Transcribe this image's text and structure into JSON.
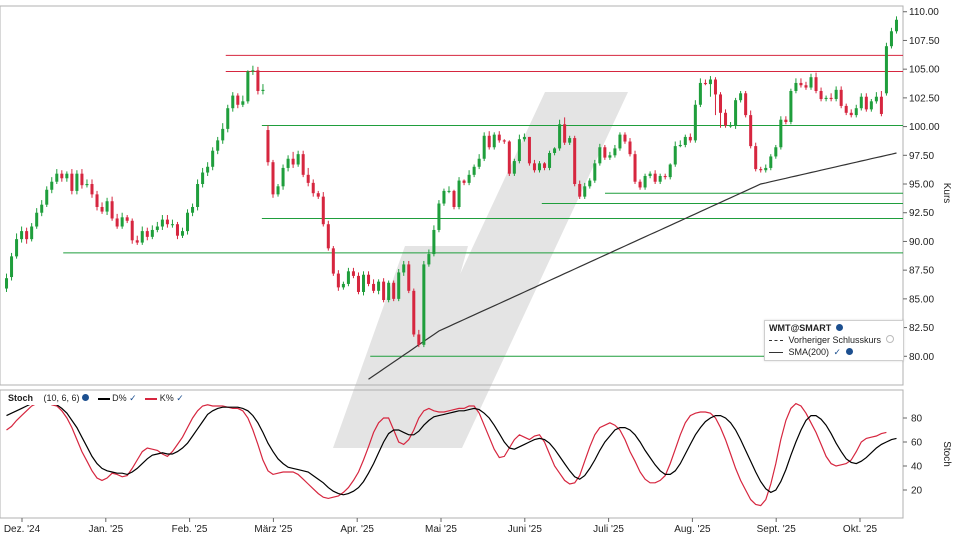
{
  "chart_data": [
    {
      "type": "candlestick",
      "symbol": "WMT@SMART",
      "ylabel": "Kurs",
      "ylim": [
        77.5,
        110.5
      ],
      "y_ticks": [
        "80.00",
        "82.50",
        "85.00",
        "87.50",
        "90.00",
        "92.50",
        "95.00",
        "97.50",
        "100.00",
        "102.50",
        "105.00",
        "107.50",
        "110.00"
      ],
      "x_ticks": [
        "Dez. '24",
        "Jan. '25",
        "Feb. '25",
        "März '25",
        "Apr. '25",
        "Mai '25",
        "Juni '25",
        "Juli '25",
        "Aug. '25",
        "Sept. '25",
        "Okt. '25"
      ],
      "legend": [
        "Vorheriger Schlusskurs",
        "SMA(200)"
      ],
      "colors": {
        "up": "#1f9e3c",
        "down": "#d6263f",
        "resistance": "#d6263f",
        "support": "#1f9e3c",
        "sma": "#333333"
      },
      "close": [
        86.8,
        88.7,
        90.2,
        90.9,
        90.2,
        91.3,
        92.5,
        93.2,
        94.5,
        95.2,
        95.9,
        95.5,
        95.9,
        94.4,
        95.9,
        94.9,
        95.0,
        94.1,
        93.0,
        92.6,
        93.5,
        92.0,
        91.3,
        92.1,
        91.8,
        90.1,
        89.9,
        90.9,
        90.4,
        91.0,
        91.3,
        91.9,
        91.5,
        91.5,
        90.5,
        90.9,
        92.5,
        93.0,
        95.0,
        96.0,
        96.5,
        97.9,
        98.8,
        99.8,
        101.6,
        102.7,
        101.9,
        102.2,
        104.8,
        104.9,
        103.1,
        103.2,
        96.9,
        94.1,
        94.8,
        96.4,
        97.2,
        96.7,
        97.6,
        95.8,
        95.1,
        94.2,
        93.9,
        91.5,
        89.4,
        87.2,
        86.0,
        86.3,
        87.4,
        87.0,
        85.6,
        87.1,
        86.3,
        85.7,
        86.5,
        84.9,
        86.4,
        85.0,
        87.3,
        88.0,
        85.7,
        81.9,
        81.0,
        88.0,
        88.9,
        91.0,
        93.3,
        94.4,
        94.4,
        93.0,
        95.3,
        95.1,
        95.8,
        96.5,
        97.2,
        99.2,
        98.2,
        99.3,
        98.8,
        98.7,
        95.9,
        97.0,
        98.9,
        99.1,
        96.8,
        96.2,
        96.8,
        96.4,
        97.7,
        98.1,
        100.2,
        98.6,
        99.0,
        95.0,
        93.9,
        94.8,
        95.3,
        96.8,
        98.2,
        97.3,
        97.5,
        98.1,
        99.3,
        98.7,
        97.6,
        95.2,
        94.7,
        95.7,
        95.9,
        95.2,
        95.7,
        95.6,
        96.7,
        98.3,
        98.4,
        99.1,
        98.8,
        101.9,
        103.8,
        103.7,
        104.1,
        102.8,
        101.2,
        100.1,
        100.1,
        102.3,
        102.9,
        101.0,
        98.3,
        96.3,
        96.2,
        96.4,
        97.4,
        98.2,
        100.6,
        100.4,
        103.1,
        103.8,
        103.6,
        103.4,
        104.3,
        103.1,
        102.4,
        102.5,
        102.4,
        103.2,
        101.8,
        101.2,
        101.0,
        101.6,
        102.6,
        101.5,
        102.2,
        102.6,
        101.1,
        107.0,
        108.3,
        109.3
      ],
      "open": [
        85.9,
        86.9,
        88.7,
        90.2,
        90.9,
        90.2,
        91.3,
        92.5,
        93.2,
        94.5,
        95.2,
        95.9,
        95.5,
        95.9,
        94.4,
        95.9,
        94.9,
        95.0,
        94.1,
        93.0,
        92.6,
        93.5,
        92.0,
        91.3,
        92.1,
        91.8,
        90.1,
        89.9,
        90.9,
        90.4,
        91.0,
        91.3,
        91.9,
        91.5,
        91.5,
        90.5,
        90.9,
        92.5,
        93.0,
        95.0,
        96.0,
        96.5,
        97.9,
        98.8,
        99.8,
        101.6,
        102.7,
        101.9,
        102.2,
        104.8,
        104.9,
        103.1,
        99.7,
        96.9,
        94.1,
        94.8,
        96.4,
        97.2,
        96.7,
        97.6,
        95.8,
        95.1,
        94.2,
        93.9,
        91.5,
        89.4,
        87.2,
        86.0,
        86.3,
        87.4,
        87.0,
        85.6,
        87.1,
        86.3,
        85.7,
        86.5,
        84.9,
        86.4,
        85.0,
        87.3,
        88.0,
        85.7,
        81.9,
        81.0,
        88.0,
        88.9,
        91.0,
        93.3,
        94.4,
        94.4,
        93.0,
        95.3,
        95.1,
        95.8,
        96.5,
        97.2,
        99.2,
        98.2,
        99.3,
        98.8,
        98.7,
        95.9,
        97.0,
        98.9,
        99.1,
        96.8,
        96.2,
        96.8,
        96.4,
        97.7,
        98.1,
        100.2,
        98.6,
        99.0,
        95.0,
        93.9,
        94.8,
        95.3,
        96.8,
        98.2,
        97.3,
        97.5,
        98.1,
        99.3,
        98.7,
        97.6,
        95.2,
        94.7,
        95.7,
        95.9,
        95.2,
        95.7,
        95.6,
        96.7,
        98.3,
        98.4,
        99.1,
        98.8,
        101.9,
        103.8,
        103.7,
        104.1,
        102.8,
        101.2,
        100.1,
        100.1,
        102.3,
        102.9,
        101.0,
        98.3,
        96.3,
        96.2,
        96.4,
        97.4,
        98.2,
        100.6,
        100.4,
        103.1,
        103.8,
        103.6,
        103.4,
        104.3,
        103.1,
        102.4,
        102.5,
        102.4,
        103.2,
        101.8,
        101.2,
        101.0,
        101.6,
        102.6,
        101.5,
        102.2,
        102.6,
        102.9,
        107.0,
        108.3
      ],
      "high": [
        87.2,
        89.0,
        90.7,
        91.3,
        91.2,
        91.6,
        92.9,
        93.6,
        94.8,
        95.6,
        96.3,
        96.2,
        96.1,
        96.3,
        96.2,
        96.3,
        95.4,
        95.4,
        94.4,
        93.4,
        93.8,
        93.9,
        92.4,
        92.5,
        92.3,
        92.0,
        90.5,
        91.3,
        91.2,
        91.4,
        91.7,
        92.3,
        92.3,
        91.9,
        91.7,
        91.2,
        92.8,
        93.3,
        95.4,
        96.4,
        96.9,
        98.2,
        99.1,
        100.3,
        101.9,
        103.0,
        102.9,
        102.7,
        104.9,
        105.3,
        105.2,
        103.7,
        100.1,
        97.1,
        95.0,
        96.7,
        97.5,
        97.8,
        97.9,
        97.9,
        96.4,
        95.4,
        94.4,
        94.3,
        91.8,
        89.6,
        87.5,
        86.5,
        87.7,
        87.7,
        87.3,
        87.4,
        87.4,
        86.7,
        86.7,
        86.8,
        86.6,
        86.6,
        87.6,
        88.3,
        88.3,
        85.9,
        82.3,
        88.3,
        89.3,
        91.4,
        93.6,
        94.6,
        94.8,
        94.5,
        95.6,
        95.4,
        96.2,
        96.7,
        97.6,
        99.5,
        99.6,
        99.5,
        99.6,
        98.9,
        98.8,
        97.2,
        99.3,
        99.4,
        99.1,
        97.1,
        97.0,
        96.9,
        97.9,
        98.2,
        100.6,
        100.8,
        99.2,
        99.2,
        95.3,
        95.1,
        95.5,
        97.1,
        98.5,
        98.4,
        97.8,
        98.4,
        99.5,
        99.5,
        99.0,
        97.9,
        95.4,
        95.9,
        96.1,
        96.2,
        95.9,
        95.9,
        96.8,
        98.7,
        98.8,
        99.3,
        99.4,
        102.3,
        104.2,
        104.1,
        104.4,
        104.3,
        103.0,
        101.5,
        100.4,
        102.5,
        103.1,
        103.1,
        101.4,
        98.6,
        96.5,
        96.7,
        97.6,
        98.4,
        100.9,
        100.9,
        103.3,
        104.2,
        104.2,
        103.9,
        104.6,
        104.7,
        103.4,
        102.7,
        102.9,
        103.5,
        103.5,
        102.0,
        101.5,
        101.9,
        102.9,
        102.9,
        102.4,
        103.0,
        103.1,
        107.3,
        108.6,
        109.6
      ],
      "low": [
        85.6,
        86.6,
        88.5,
        89.9,
        89.8,
        90.0,
        91.1,
        92.2,
        93.0,
        94.2,
        95.0,
        95.2,
        95.2,
        94.1,
        94.1,
        94.6,
        94.7,
        93.8,
        92.7,
        92.4,
        92.3,
        91.8,
        91.1,
        91.1,
        91.6,
        89.8,
        89.7,
        89.7,
        90.1,
        90.2,
        90.8,
        91.0,
        91.2,
        91.2,
        90.2,
        90.3,
        90.6,
        92.2,
        92.7,
        94.7,
        95.7,
        96.2,
        97.6,
        98.5,
        99.5,
        101.3,
        101.6,
        101.7,
        102.0,
        104.5,
        102.8,
        102.8,
        96.6,
        93.8,
        93.9,
        94.5,
        96.1,
        96.4,
        96.5,
        95.6,
        94.8,
        93.9,
        93.7,
        91.3,
        89.2,
        87.0,
        85.7,
        85.8,
        86.1,
        86.8,
        85.4,
        85.3,
        86.1,
        85.5,
        85.4,
        84.7,
        84.7,
        84.8,
        84.8,
        87.0,
        85.5,
        81.7,
        80.8,
        80.8,
        87.8,
        88.7,
        90.8,
        93.1,
        94.2,
        92.8,
        92.8,
        94.9,
        94.9,
        95.6,
        96.3,
        97.0,
        98.0,
        98.0,
        98.6,
        98.5,
        95.7,
        95.7,
        96.8,
        98.7,
        96.6,
        96.0,
        96.0,
        96.2,
        96.2,
        97.5,
        97.9,
        98.4,
        98.4,
        94.8,
        93.7,
        93.7,
        94.6,
        95.1,
        96.6,
        97.1,
        97.1,
        97.3,
        97.9,
        98.5,
        97.4,
        95.0,
        94.5,
        94.5,
        95.5,
        95.0,
        95.0,
        95.4,
        95.4,
        96.5,
        98.2,
        98.2,
        98.6,
        98.6,
        101.7,
        103.6,
        102.6,
        101.0,
        99.9,
        99.9,
        99.9,
        99.8,
        102.1,
        100.8,
        98.1,
        96.1,
        96.0,
        96.0,
        96.2,
        97.2,
        98.0,
        100.2,
        100.2,
        102.9,
        103.4,
        103.2,
        103.2,
        102.9,
        102.2,
        102.2,
        102.2,
        102.2,
        101.6,
        101.0,
        100.8,
        100.8,
        101.4,
        101.3,
        101.3,
        102.0,
        100.9,
        102.7,
        106.8,
        108.1
      ],
      "sma200": [
        null,
        null,
        null,
        null,
        null,
        null,
        null,
        null,
        null,
        null,
        null,
        null,
        null,
        null,
        null,
        null,
        null,
        null,
        null,
        null,
        null,
        null,
        null,
        null,
        null,
        null,
        null,
        null,
        null,
        null,
        null,
        null,
        null,
        null,
        null,
        null,
        null,
        null,
        null,
        null,
        null,
        null,
        null,
        null,
        null,
        null,
        null,
        null,
        null,
        null,
        null,
        null,
        null,
        null,
        null,
        null,
        null,
        null,
        null,
        null,
        null,
        null,
        null,
        null,
        null,
        null,
        null,
        null,
        null,
        null,
        null,
        null,
        78.0,
        78.3,
        78.6,
        78.9,
        79.2,
        79.5,
        79.8,
        80.1,
        80.4,
        80.7,
        81.0,
        81.3,
        81.6,
        81.9,
        82.2,
        82.4,
        82.6,
        82.8,
        83.0,
        83.2,
        83.4,
        83.6,
        83.8,
        84.0,
        84.2,
        84.4,
        84.6,
        84.8,
        85.0,
        85.2,
        85.4,
        85.6,
        85.8,
        86.0,
        86.2,
        86.4,
        86.6,
        86.8,
        87.0,
        87.2,
        87.4,
        87.6,
        87.8,
        88.0,
        88.2,
        88.4,
        88.6,
        88.8,
        89.0,
        89.2,
        89.4,
        89.6,
        89.8,
        90.0,
        90.2,
        90.4,
        90.6,
        90.8,
        91.0,
        91.2,
        91.4,
        91.6,
        91.8,
        92.0,
        92.2,
        92.4,
        92.6,
        92.8,
        93.0,
        93.2,
        93.4,
        93.6,
        93.8,
        94.0,
        94.2,
        94.4,
        94.6,
        94.8,
        95.0,
        95.1,
        95.2,
        95.3,
        95.4,
        95.5,
        95.6,
        95.7,
        95.8,
        95.9,
        96.0,
        96.1,
        96.2,
        96.3,
        96.4,
        96.5,
        96.6,
        96.7,
        96.8,
        96.9,
        97.0,
        97.1,
        97.2,
        97.3,
        97.4,
        97.5,
        97.6,
        97.7
      ],
      "h_lines": [
        {
          "y": 106.2,
          "start": 0.25,
          "kind": "resistance"
        },
        {
          "y": 104.8,
          "start": 0.25,
          "kind": "resistance"
        },
        {
          "y": 100.1,
          "start": 0.29,
          "kind": "support"
        },
        {
          "y": 94.2,
          "start": 0.67,
          "kind": "support"
        },
        {
          "y": 93.3,
          "start": 0.6,
          "kind": "support"
        },
        {
          "y": 92.0,
          "start": 0.29,
          "kind": "support"
        },
        {
          "y": 89.0,
          "start": 0.07,
          "kind": "support"
        },
        {
          "y": 80.0,
          "start": 0.41,
          "kind": "support"
        }
      ]
    },
    {
      "type": "line",
      "title": "Stoch",
      "params": "(10, 6, 6)",
      "ylabel": "Stoch",
      "ylim": [
        0,
        100
      ],
      "y_ticks": [
        "20",
        "40",
        "60",
        "80"
      ],
      "series": [
        {
          "name": "D%",
          "color": "#000000"
        },
        {
          "name": "K%",
          "color": "#d6263f"
        }
      ],
      "k": [
        70,
        73,
        78,
        82,
        86,
        90,
        92,
        94,
        93,
        91,
        90,
        86,
        80,
        72,
        62,
        52,
        44,
        36,
        30,
        28,
        30,
        34,
        33,
        31,
        32,
        38,
        45,
        52,
        55,
        54,
        53,
        50,
        48,
        52,
        58,
        64,
        72,
        80,
        86,
        90,
        91,
        90,
        90,
        90,
        89,
        88,
        88,
        86,
        80,
        70,
        58,
        45,
        36,
        33,
        34,
        35,
        35,
        35,
        33,
        29,
        25,
        21,
        17,
        14,
        13,
        14,
        15,
        18,
        22,
        28,
        35,
        45,
        56,
        68,
        76,
        80,
        80,
        70,
        60,
        58,
        62,
        70,
        80,
        86,
        88,
        86,
        85,
        85,
        86,
        87,
        88,
        88,
        90,
        90,
        84,
        74,
        64,
        54,
        47,
        48,
        55,
        62,
        66,
        64,
        62,
        65,
        66,
        60,
        50,
        40,
        34,
        28,
        25,
        26,
        32,
        44,
        56,
        66,
        72,
        74,
        76,
        74,
        70,
        62,
        52,
        44,
        35,
        29,
        26,
        26,
        28,
        32,
        42,
        54,
        66,
        76,
        82,
        84,
        85,
        85,
        84,
        80,
        72,
        62,
        50,
        38,
        28,
        20,
        12,
        8,
        7,
        12,
        25,
        42,
        62,
        78,
        88,
        92,
        90,
        84,
        76,
        68,
        58,
        48,
        42,
        40,
        41,
        42,
        45,
        52,
        60,
        63,
        64,
        65,
        67,
        68
      ],
      "d": [
        82,
        84,
        86,
        88,
        90,
        92,
        93,
        93,
        93,
        92,
        91,
        88,
        84,
        78,
        72,
        64,
        56,
        48,
        42,
        38,
        36,
        35,
        34,
        34,
        33,
        35,
        38,
        42,
        46,
        49,
        50,
        51,
        50,
        50,
        52,
        55,
        59,
        65,
        71,
        77,
        83,
        86,
        88,
        89,
        89,
        89,
        89,
        88,
        86,
        82,
        76,
        68,
        59,
        52,
        46,
        42,
        39,
        38,
        37,
        36,
        35,
        32,
        29,
        26,
        22,
        19,
        17,
        16,
        17,
        19,
        22,
        27,
        34,
        42,
        51,
        60,
        67,
        70,
        70,
        68,
        66,
        66,
        69,
        74,
        78,
        81,
        82,
        83,
        84,
        85,
        86,
        86,
        87,
        88,
        87,
        84,
        80,
        74,
        67,
        60,
        55,
        54,
        56,
        58,
        60,
        62,
        63,
        62,
        59,
        54,
        48,
        42,
        36,
        31,
        29,
        32,
        38,
        45,
        53,
        60,
        65,
        70,
        72,
        72,
        70,
        66,
        60,
        53,
        47,
        41,
        36,
        33,
        33,
        36,
        42,
        50,
        58,
        66,
        72,
        77,
        80,
        82,
        82,
        80,
        76,
        70,
        62,
        53,
        44,
        35,
        27,
        21,
        18,
        20,
        27,
        37,
        49,
        60,
        70,
        78,
        82,
        82,
        79,
        74,
        67,
        59,
        52,
        46,
        43,
        42,
        44,
        47,
        51,
        55,
        58,
        60,
        62,
        63
      ]
    }
  ]
}
